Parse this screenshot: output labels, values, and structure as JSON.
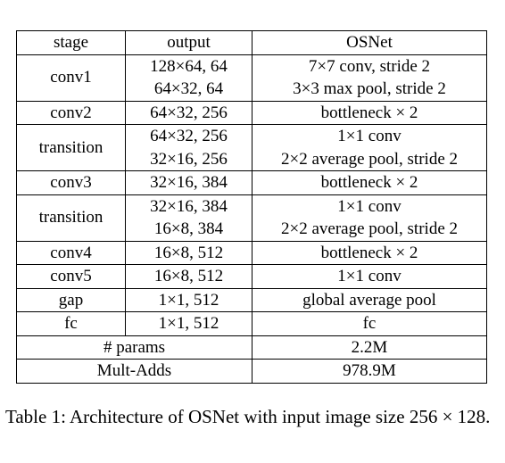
{
  "table": {
    "header": [
      "stage",
      "output",
      "OSNet"
    ],
    "rows": [
      {
        "stage": "conv1",
        "output": [
          "128×64, 64",
          "64×32, 64"
        ],
        "osnet": [
          "7×7 conv, stride 2",
          "3×3 max pool, stride 2"
        ]
      },
      {
        "stage": "conv2",
        "output": [
          "64×32, 256"
        ],
        "osnet": [
          "bottleneck × 2"
        ]
      },
      {
        "stage": "transition",
        "output": [
          "64×32, 256",
          "32×16, 256"
        ],
        "osnet": [
          "1×1 conv",
          "2×2 average pool, stride 2"
        ]
      },
      {
        "stage": "conv3",
        "output": [
          "32×16, 384"
        ],
        "osnet": [
          "bottleneck × 2"
        ]
      },
      {
        "stage": "transition",
        "output": [
          "32×16, 384",
          "16×8, 384"
        ],
        "osnet": [
          "1×1 conv",
          "2×2 average pool, stride 2"
        ]
      },
      {
        "stage": "conv4",
        "output": [
          "16×8, 512"
        ],
        "osnet": [
          "bottleneck × 2"
        ]
      },
      {
        "stage": "conv5",
        "output": [
          "16×8, 512"
        ],
        "osnet": [
          "1×1 conv"
        ]
      },
      {
        "stage": "gap",
        "output": [
          "1×1, 512"
        ],
        "osnet": [
          "global average pool"
        ]
      },
      {
        "stage": "fc",
        "output": [
          "1×1, 512"
        ],
        "osnet": [
          "fc"
        ]
      }
    ],
    "summary": [
      {
        "label": "# params",
        "value": "2.2M"
      },
      {
        "label": "Mult-Adds",
        "value": "978.9M"
      }
    ]
  },
  "caption": "Table 1: Architecture of OSNet with input image size 256 × 128."
}
